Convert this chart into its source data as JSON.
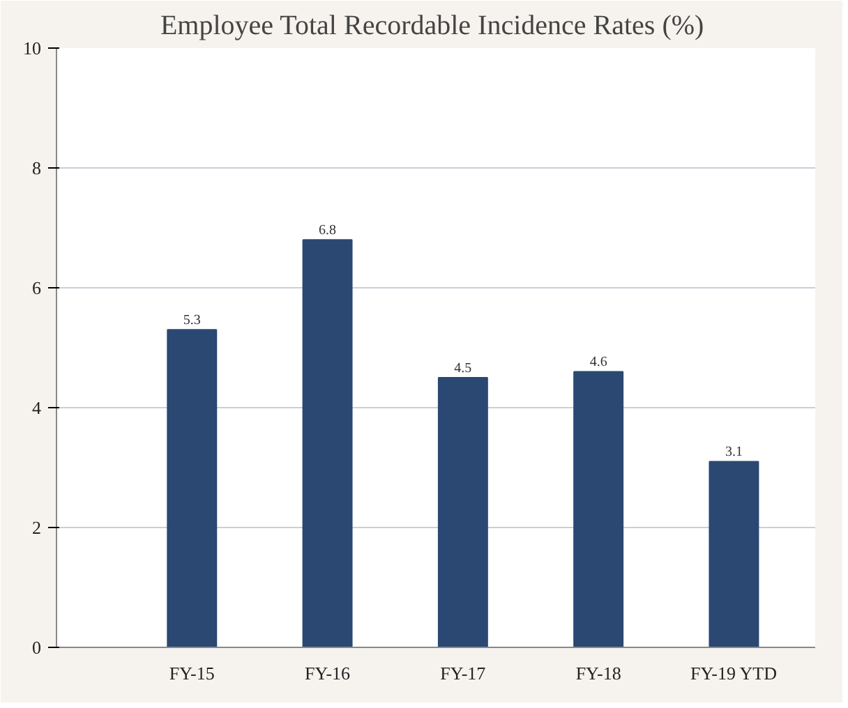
{
  "chart_data": {
    "type": "bar",
    "title": "Employee Total Recordable Incidence Rates  (%)",
    "categories": [
      "FY-15",
      "FY-16",
      "FY-17",
      "FY-18",
      "FY-19 YTD"
    ],
    "values": [
      5.3,
      6.8,
      4.5,
      4.6,
      3.1
    ],
    "color": "#2b4873",
    "ylim": [
      0,
      10
    ],
    "yticks": [
      0,
      2,
      4,
      6,
      8,
      10
    ],
    "grid": "y",
    "data_labels": true
  }
}
